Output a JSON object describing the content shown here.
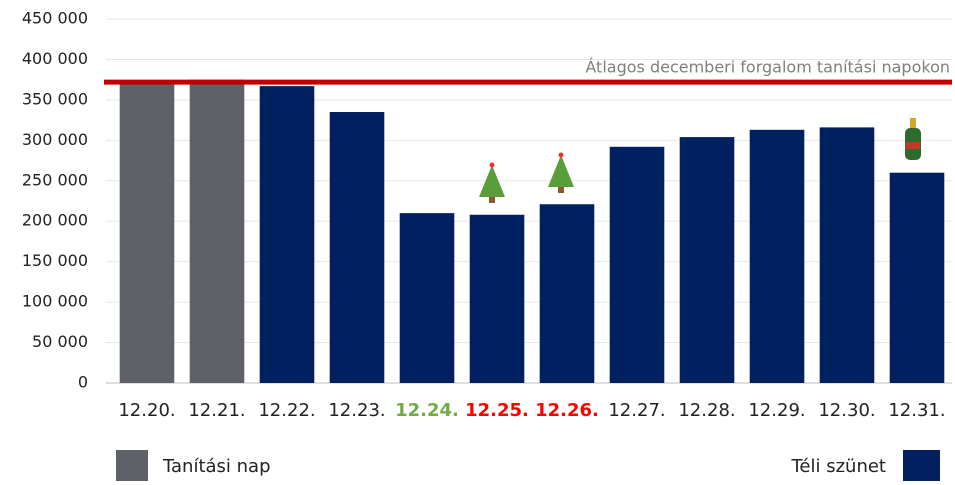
{
  "chart_data": {
    "type": "bar",
    "categories": [
      "12.20.",
      "12.21.",
      "12.22.",
      "12.23.",
      "12.24.",
      "12.25.",
      "12.26.",
      "12.27.",
      "12.28.",
      "12.29.",
      "12.30.",
      "12.31."
    ],
    "category_label_colors": [
      "#222222",
      "#222222",
      "#222222",
      "#222222",
      "#70ad47",
      "#ff0000",
      "#ff0000",
      "#222222",
      "#222222",
      "#222222",
      "#222222",
      "#222222"
    ],
    "series": [
      {
        "name": "Tanítási nap",
        "color": "#5f6169",
        "values": [
          370000,
          375000,
          null,
          null,
          null,
          null,
          null,
          null,
          null,
          null,
          null,
          null
        ]
      },
      {
        "name": "Téli szünet",
        "color": "#002060",
        "values": [
          null,
          null,
          367000,
          335000,
          210000,
          208000,
          221000,
          292000,
          304000,
          313000,
          316000,
          260000
        ]
      }
    ],
    "reference_line": {
      "value": 372000,
      "label": "Átlagos decemberi forgalom tanítási napokon",
      "color": "#c00000"
    },
    "ylim": [
      0,
      450000
    ],
    "yticks": [
      {
        "value": 0,
        "label": "0"
      },
      {
        "value": 50000,
        "label": "50 000"
      },
      {
        "value": 100000,
        "label": "100 000"
      },
      {
        "value": 150000,
        "label": "150 000"
      },
      {
        "value": 200000,
        "label": "200 000"
      },
      {
        "value": 250000,
        "label": "250 000"
      },
      {
        "value": 300000,
        "label": "300 000"
      },
      {
        "value": 350000,
        "label": "350 000"
      },
      {
        "value": 400000,
        "label": "400 000"
      },
      {
        "value": 450000,
        "label": "450 000"
      }
    ],
    "grid": true
  }
}
